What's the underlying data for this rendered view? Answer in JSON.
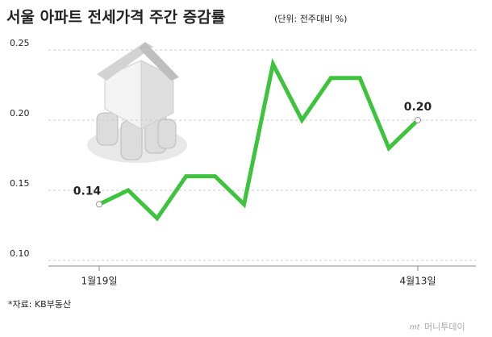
{
  "chart_data": {
    "type": "line",
    "title": "서울 아파트 전세가격 주간 증감률",
    "subtitle": "(단위: 전주대비 %)",
    "categories": [
      "1월19일",
      null,
      null,
      null,
      null,
      null,
      null,
      null,
      null,
      null,
      null,
      "4월13일"
    ],
    "values": [
      0.14,
      0.15,
      0.13,
      0.16,
      0.16,
      0.14,
      0.24,
      0.2,
      0.23,
      0.23,
      0.18,
      0.2
    ],
    "value_labels": [
      "0.14",
      null,
      null,
      null,
      null,
      null,
      null,
      null,
      null,
      null,
      null,
      "0.20"
    ],
    "color": "#3cc43c",
    "ylim": [
      0.1,
      0.25
    ],
    "yticks": [
      {
        "value": 0.1,
        "label": "0.10"
      },
      0.15,
      {
        "value": 0.2,
        "label": "0.20"
      },
      0.25
    ],
    "grid": true,
    "source": "*자료: KB부동산",
    "watermark_logo": "mt",
    "watermark": "머니투데이"
  }
}
